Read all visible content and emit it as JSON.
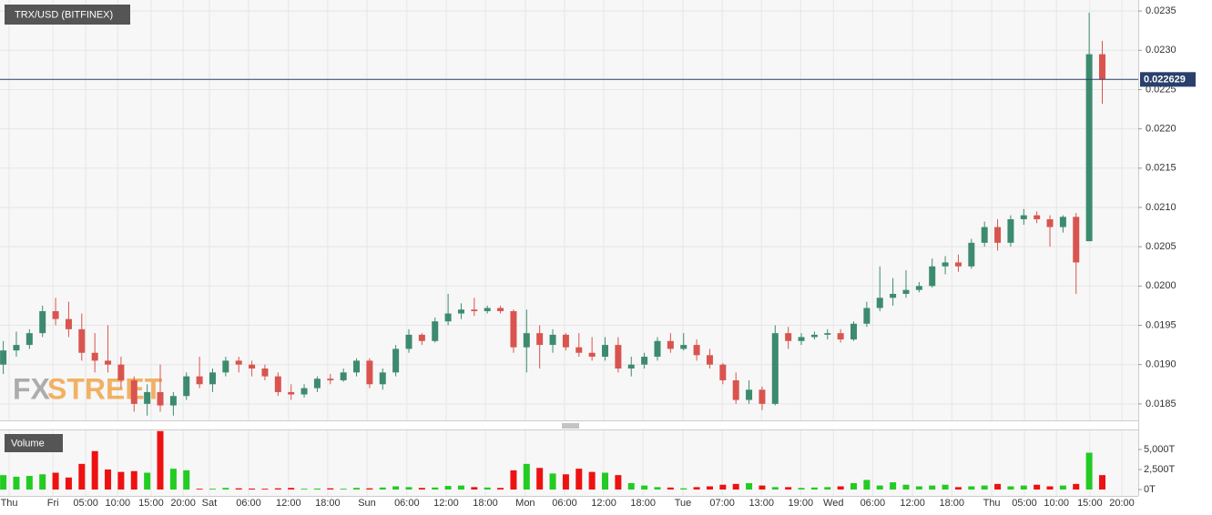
{
  "chart_data": {
    "type": "candlestick",
    "title": "TRX/USD (BITFINEX)",
    "watermark": [
      "FX",
      "STREET"
    ],
    "up_color": "#3d8b6e",
    "down_color": "#d9544f",
    "x": [
      0.5,
      2.5,
      4.5,
      6.5,
      8.5,
      10.5,
      12.5,
      14.5,
      16.5,
      18.5,
      20.5,
      22.5,
      24.5,
      26.5,
      28.5,
      30.5,
      32.5,
      34.5,
      36.5,
      38.5,
      40.5,
      42.5,
      44.5,
      46.5,
      48.5,
      50.5,
      52.5,
      54.5,
      56.5,
      58.5,
      60.5,
      62.5,
      64.5,
      66.5,
      68.5,
      70.5,
      72.5,
      74.5,
      76.5,
      78.5,
      80.5,
      82.5,
      84.5,
      86.5,
      88.5,
      90.5,
      92.5,
      94.5,
      96.5,
      98.5,
      100.5,
      102.5,
      104.5,
      106.5,
      108.5,
      110.5,
      112.5,
      114.5,
      116.5,
      118.5,
      120.5,
      122.5,
      124.5,
      126.5,
      128.5,
      130.5,
      132.5,
      134.5,
      136.5,
      138.5,
      140.5,
      142.5,
      144.5,
      146.5,
      148.5,
      150.5,
      152.5,
      154.5,
      156.5,
      158.5,
      160.5,
      162.5,
      164.5,
      166.5,
      168.5
    ],
    "open": [
      0.019,
      0.01918,
      0.01925,
      0.0194,
      0.01968,
      0.01958,
      0.01945,
      0.01915,
      0.01905,
      0.019,
      0.0188,
      0.0185,
      0.01865,
      0.01848,
      0.0186,
      0.01885,
      0.01875,
      0.0189,
      0.01905,
      0.019,
      0.01895,
      0.01885,
      0.01865,
      0.01862,
      0.0187,
      0.01882,
      0.0188,
      0.0189,
      0.01905,
      0.01875,
      0.0189,
      0.0192,
      0.01938,
      0.0193,
      0.01955,
      0.01965,
      0.0197,
      0.01968,
      0.01972,
      0.01968,
      0.01922,
      0.0194,
      0.01925,
      0.01938,
      0.01922,
      0.01915,
      0.0191,
      0.01925,
      0.01895,
      0.019,
      0.0191,
      0.0193,
      0.0192,
      0.01925,
      0.01912,
      0.019,
      0.0188,
      0.01855,
      0.01868,
      0.0185,
      0.0194,
      0.0193,
      0.01935,
      0.01938,
      0.0194,
      0.01932,
      0.01952,
      0.01972,
      0.01985,
      0.0199,
      0.01995,
      0.02,
      0.02025,
      0.0203,
      0.02025,
      0.02055,
      0.02075,
      0.02055,
      0.02085,
      0.0209,
      0.02085,
      0.02075,
      0.02088,
      0.02057,
      0.02295
    ],
    "high": [
      0.0193,
      0.01942,
      0.01945,
      0.01975,
      0.01985,
      0.0198,
      0.01965,
      0.0194,
      0.0195,
      0.0191,
      0.01885,
      0.01875,
      0.019,
      0.01865,
      0.0189,
      0.0191,
      0.01895,
      0.0191,
      0.0191,
      0.01905,
      0.019,
      0.0189,
      0.01875,
      0.01875,
      0.01885,
      0.01888,
      0.01895,
      0.01908,
      0.01908,
      0.01895,
      0.01925,
      0.01945,
      0.0194,
      0.0196,
      0.0199,
      0.01978,
      0.01985,
      0.01975,
      0.01975,
      0.0197,
      0.0197,
      0.0195,
      0.01945,
      0.0194,
      0.0194,
      0.01935,
      0.01935,
      0.01935,
      0.0191,
      0.01915,
      0.01935,
      0.0194,
      0.0194,
      0.01932,
      0.0192,
      0.01902,
      0.0189,
      0.0188,
      0.01872,
      0.0195,
      0.01948,
      0.0194,
      0.01942,
      0.01945,
      0.01945,
      0.01955,
      0.0198,
      0.02025,
      0.0201,
      0.0202,
      0.02005,
      0.02035,
      0.02038,
      0.0204,
      0.0206,
      0.02082,
      0.02085,
      0.0209,
      0.02098,
      0.02095,
      0.0209,
      0.0209,
      0.02093,
      0.02348,
      0.02312
    ],
    "low": [
      0.01888,
      0.0191,
      0.0192,
      0.01935,
      0.0195,
      0.01935,
      0.01905,
      0.0189,
      0.0189,
      0.0187,
      0.0184,
      0.01835,
      0.0184,
      0.01835,
      0.01855,
      0.0187,
      0.01865,
      0.01885,
      0.0189,
      0.01885,
      0.0188,
      0.0186,
      0.01855,
      0.01858,
      0.01865,
      0.01875,
      0.01878,
      0.01885,
      0.0187,
      0.01868,
      0.01885,
      0.01915,
      0.01925,
      0.01928,
      0.0195,
      0.01958,
      0.01962,
      0.01965,
      0.01965,
      0.01915,
      0.0189,
      0.01895,
      0.01915,
      0.01918,
      0.0191,
      0.01905,
      0.01905,
      0.0189,
      0.01885,
      0.01895,
      0.01905,
      0.01915,
      0.01918,
      0.01905,
      0.01895,
      0.01875,
      0.0185,
      0.0185,
      0.01842,
      0.01848,
      0.0192,
      0.01925,
      0.01932,
      0.01932,
      0.01928,
      0.0193,
      0.01948,
      0.01968,
      0.01975,
      0.01985,
      0.01992,
      0.01998,
      0.02015,
      0.02018,
      0.02022,
      0.0205,
      0.02045,
      0.0205,
      0.02078,
      0.0208,
      0.0205,
      0.02068,
      0.0199,
      0.02057,
      0.02232
    ],
    "close": [
      0.01918,
      0.01925,
      0.0194,
      0.01968,
      0.01958,
      0.01945,
      0.01915,
      0.01905,
      0.019,
      0.0188,
      0.0185,
      0.01865,
      0.01848,
      0.0186,
      0.01885,
      0.01875,
      0.0189,
      0.01905,
      0.019,
      0.01895,
      0.01885,
      0.01865,
      0.01862,
      0.0187,
      0.01882,
      0.0188,
      0.0189,
      0.01905,
      0.01875,
      0.0189,
      0.0192,
      0.01938,
      0.0193,
      0.01955,
      0.01965,
      0.0197,
      0.01968,
      0.01972,
      0.01968,
      0.01922,
      0.0194,
      0.01925,
      0.01938,
      0.01922,
      0.01915,
      0.0191,
      0.01925,
      0.01895,
      0.019,
      0.0191,
      0.0193,
      0.0192,
      0.01925,
      0.01912,
      0.019,
      0.0188,
      0.01855,
      0.01868,
      0.0185,
      0.0194,
      0.0193,
      0.01935,
      0.01938,
      0.0194,
      0.01932,
      0.01952,
      0.01972,
      0.01985,
      0.0199,
      0.01995,
      0.02,
      0.02025,
      0.0203,
      0.02025,
      0.02055,
      0.02075,
      0.02055,
      0.02085,
      0.0209,
      0.02085,
      0.02075,
      0.02088,
      0.0203,
      0.02295,
      0.022629
    ],
    "last_price": 0.022629,
    "last_price_color": "#2a3f6b",
    "xlim": [
      0,
      174
    ],
    "ylim": [
      0.01829,
      0.02364
    ],
    "yticks": [
      0.0185,
      {
        "value": 0.019,
        "label": "0.0190"
      },
      0.0195,
      {
        "value": 0.02,
        "label": "0.0200"
      },
      0.0205,
      {
        "value": 0.021,
        "label": "0.0210"
      },
      0.0215,
      {
        "value": 0.022,
        "label": "0.0220"
      },
      0.0225,
      {
        "value": 0.023,
        "label": "0.0230"
      },
      0.0235
    ],
    "xticks": [
      {
        "value": 1.4,
        "label": "Thu"
      },
      {
        "value": 8.1,
        "label": "Fri"
      },
      {
        "value": 13.1,
        "label": "05:00"
      },
      {
        "value": 18,
        "label": "10:00"
      },
      {
        "value": 23.1,
        "label": "15:00"
      },
      {
        "value": 28,
        "label": "20:00"
      },
      {
        "value": 32,
        "label": "Sat"
      },
      {
        "value": 38,
        "label": "06:00"
      },
      {
        "value": 44.1,
        "label": "12:00"
      },
      {
        "value": 50.1,
        "label": "18:00"
      },
      {
        "value": 56.1,
        "label": "Sun"
      },
      {
        "value": 62.2,
        "label": "06:00"
      },
      {
        "value": 68.2,
        "label": "12:00"
      },
      {
        "value": 74.2,
        "label": "18:00"
      },
      {
        "value": 80.3,
        "label": "Mon"
      },
      {
        "value": 86.3,
        "label": "06:00"
      },
      {
        "value": 92.3,
        "label": "12:00"
      },
      {
        "value": 98.3,
        "label": "18:00"
      },
      {
        "value": 104.4,
        "label": "Tue"
      },
      {
        "value": 110.4,
        "label": "07:00"
      },
      {
        "value": 116.4,
        "label": "13:00"
      },
      {
        "value": 122.4,
        "label": "19:00"
      },
      {
        "value": 127.4,
        "label": "Wed"
      },
      {
        "value": 133.4,
        "label": "06:00"
      },
      {
        "value": 139.5,
        "label": "12:00"
      },
      {
        "value": 145.5,
        "label": "18:00"
      },
      {
        "value": 151.6,
        "label": "Thu"
      },
      {
        "value": 156.6,
        "label": "05:00"
      },
      {
        "value": 161.5,
        "label": "10:00"
      },
      {
        "value": 166.6,
        "label": "15:00"
      },
      {
        "value": 171.5,
        "label": "20:00"
      }
    ],
    "grid": true,
    "volume": {
      "title": "Volume",
      "up_color": "#22cc22",
      "down_color": "#ee1111",
      "values": [
        1800,
        1600,
        1700,
        1900,
        2100,
        1500,
        3200,
        4800,
        2500,
        2200,
        2300,
        2100,
        7300,
        2600,
        2400,
        100,
        100,
        200,
        150,
        120,
        100,
        150,
        200,
        100,
        120,
        150,
        100,
        200,
        150,
        250,
        400,
        300,
        200,
        250,
        450,
        500,
        300,
        250,
        200,
        2400,
        3200,
        2700,
        2000,
        1900,
        2600,
        2200,
        2100,
        1800,
        800,
        500,
        300,
        250,
        150,
        300,
        400,
        600,
        700,
        800,
        500,
        300,
        300,
        200,
        250,
        300,
        400,
        800,
        1200,
        500,
        900,
        600,
        400,
        500,
        600,
        300,
        400,
        500,
        700,
        400,
        500,
        600,
        400,
        500,
        700,
        4600,
        1800
      ],
      "ylim": [
        0,
        7500
      ],
      "yticks": [
        {
          "value": 0,
          "label": "0T"
        },
        {
          "value": 2500,
          "label": "2,500T"
        },
        {
          "value": 5000,
          "label": "5,000T"
        }
      ]
    }
  }
}
